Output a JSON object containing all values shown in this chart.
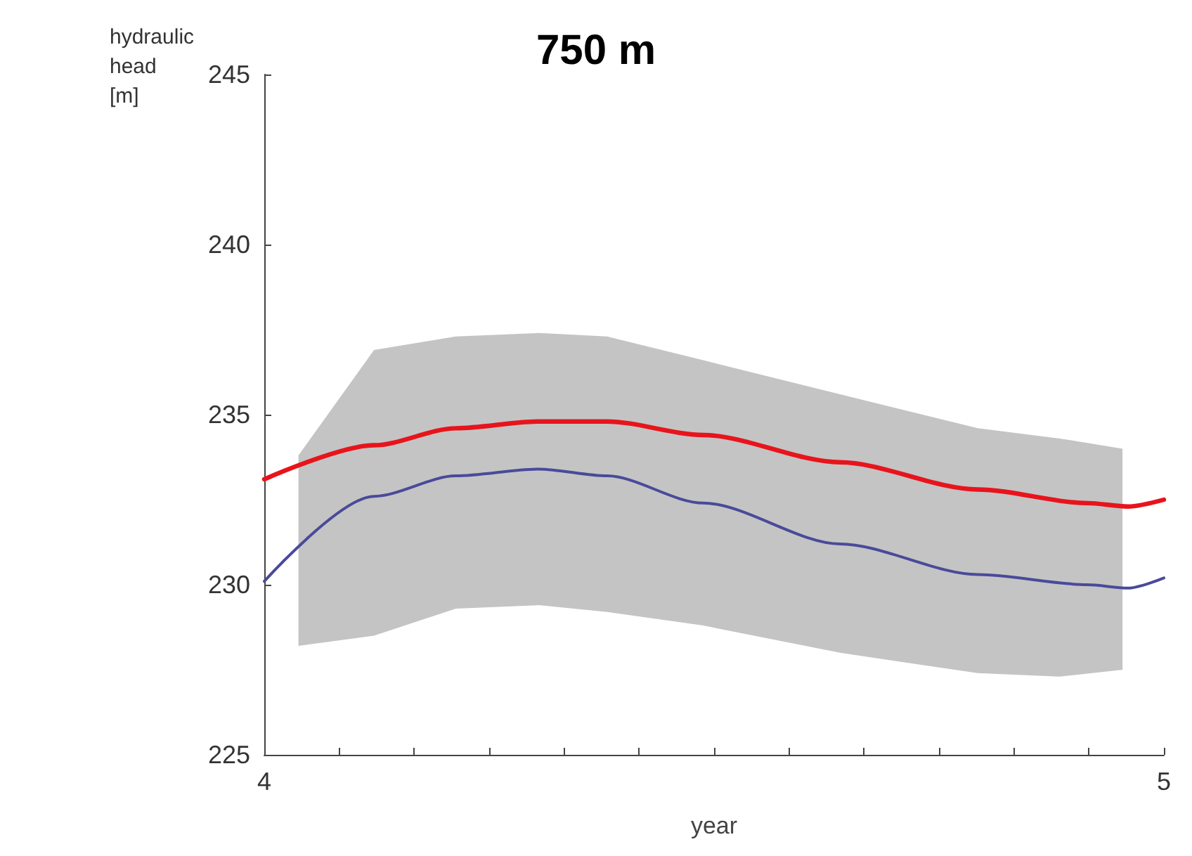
{
  "chart_data": {
    "type": "line",
    "title": "750 m",
    "xlabel": "year",
    "ylabel": "hydraulic head [m]",
    "xlim": [
      4,
      5
    ],
    "xticks": [
      4,
      {
        "value": 4.0833,
        "label": null
      },
      {
        "value": 4.1667,
        "label": null
      },
      {
        "value": 4.25,
        "label": null
      },
      {
        "value": 4.3333,
        "label": null
      },
      {
        "value": 4.4167,
        "label": null
      },
      {
        "value": 4.5,
        "label": null
      },
      {
        "value": 4.5833,
        "label": null
      },
      {
        "value": 4.6667,
        "label": null
      },
      {
        "value": 4.75,
        "label": null
      },
      {
        "value": 4.8333,
        "label": null
      },
      {
        "value": 4.9167,
        "label": null
      },
      5
    ],
    "ylim": [
      225,
      245
    ],
    "yticks": [
      225,
      230,
      235,
      240,
      245
    ],
    "grid": false,
    "marker": "none",
    "line_style": "solid",
    "series": [
      {
        "type": "area",
        "color": "#c4c4c4",
        "x": [
          4.038,
          4.122,
          4.213,
          4.305,
          4.381,
          4.488,
          4.64,
          4.793,
          4.884,
          4.954
        ],
        "values": [
          null,
          null,
          null,
          null,
          null,
          null,
          null,
          null,
          null,
          null
        ],
        "lower": [
          228.2,
          228.5,
          229.3,
          229.4,
          229.2,
          228.8,
          228.0,
          227.4,
          227.3,
          227.5
        ],
        "upper": [
          233.8,
          236.9,
          237.3,
          237.4,
          237.3,
          236.6,
          235.6,
          234.6,
          234.3,
          234.0
        ]
      },
      {
        "color": "#4a4a9a",
        "x": [
          4,
          4.122,
          4.213,
          4.305,
          4.381,
          4.488,
          4.64,
          4.793,
          4.915,
          4.96,
          5
        ],
        "values": [
          230.1,
          232.6,
          233.2,
          233.4,
          233.2,
          232.4,
          231.2,
          230.3,
          230.0,
          229.9,
          230.2
        ]
      },
      {
        "color": "#e8141c",
        "x": [
          4,
          4.122,
          4.213,
          4.305,
          4.381,
          4.488,
          4.64,
          4.793,
          4.915,
          4.96,
          5
        ],
        "values": [
          233.1,
          234.1,
          234.6,
          234.8,
          234.8,
          234.4,
          233.6,
          232.8,
          232.4,
          232.3,
          232.5
        ]
      }
    ]
  }
}
